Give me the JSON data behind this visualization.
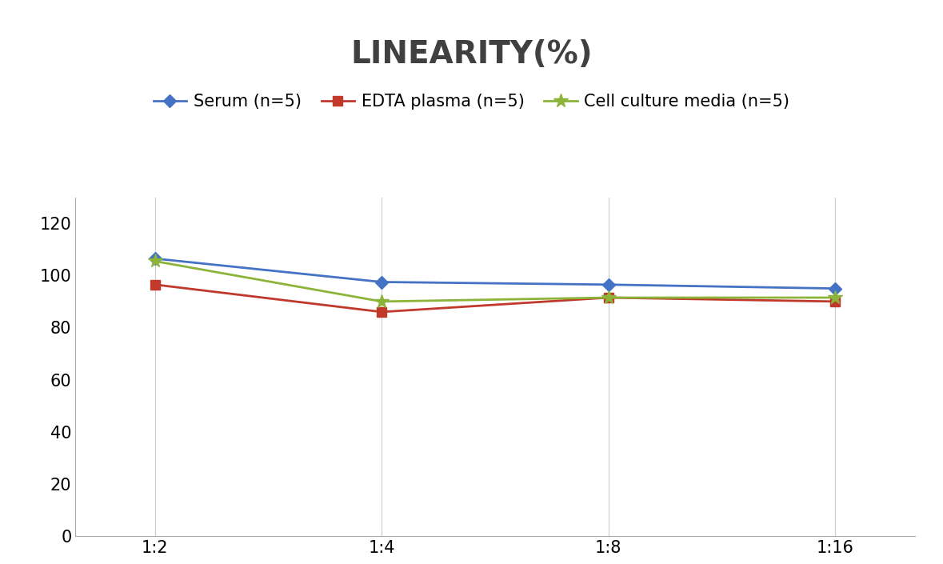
{
  "title": "LINEARITY(%)",
  "x_labels": [
    "1:2",
    "1:4",
    "1:8",
    "1:16"
  ],
  "x_positions": [
    0,
    1,
    2,
    3
  ],
  "series": [
    {
      "label": "Serum (n=5)",
      "color": "#4472C4",
      "marker": "D",
      "values": [
        106.5,
        97.5,
        96.5,
        95.0
      ]
    },
    {
      "label": "EDTA plasma (n=5)",
      "color": "#C0392B",
      "marker": "s",
      "values": [
        96.5,
        86.0,
        91.5,
        90.0
      ]
    },
    {
      "label": "Cell culture media (n=5)",
      "color": "#8DB43A",
      "marker": "*",
      "values": [
        105.5,
        90.0,
        91.5,
        91.5
      ]
    }
  ],
  "ylim": [
    0,
    130
  ],
  "yticks": [
    0,
    20,
    40,
    60,
    80,
    100,
    120
  ],
  "title_fontsize": 28,
  "legend_fontsize": 15,
  "tick_fontsize": 15,
  "background_color": "#ffffff",
  "grid_color": "#cccccc",
  "title_color": "#404040"
}
